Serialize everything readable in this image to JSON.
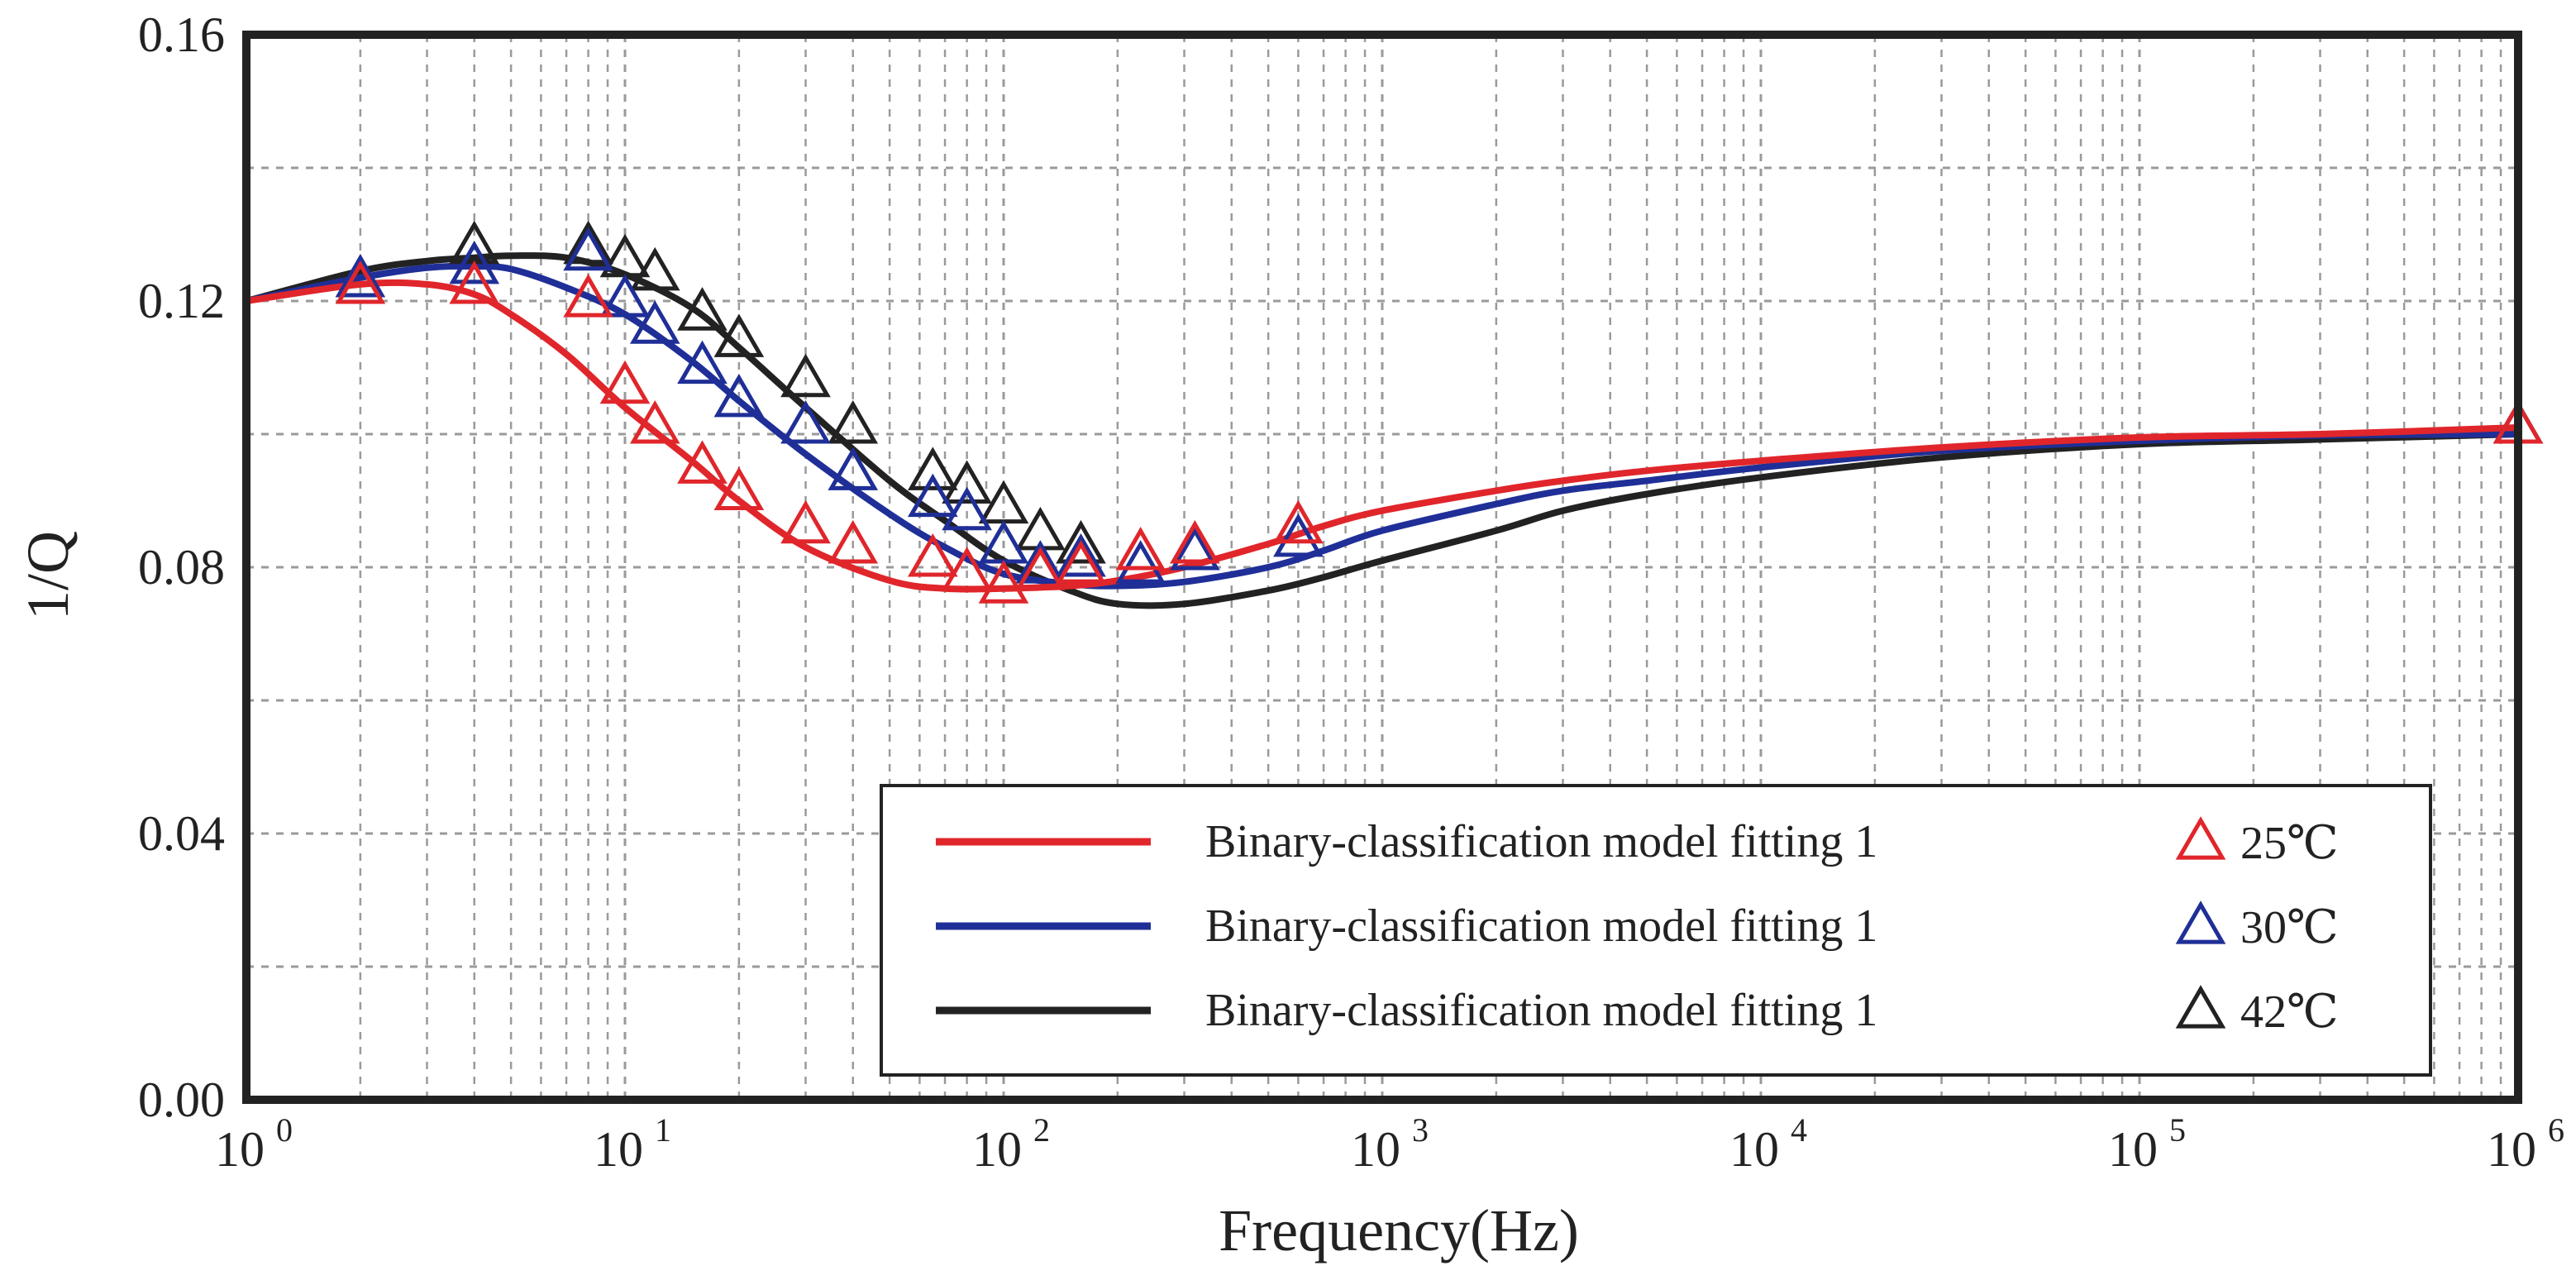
{
  "chart_data": {
    "type": "line",
    "title": "",
    "xlabel": "Frequency(Hz)",
    "ylabel": "1/Q",
    "xscale": "log",
    "xlim": [
      1,
      1000000
    ],
    "ylim": [
      0.0,
      0.16
    ],
    "y_ticks": [
      "0.00",
      "0.04",
      "0.08",
      "0.12",
      "0.16"
    ],
    "x_ticks": [
      {
        "base": "10",
        "exp": "0"
      },
      {
        "base": "10",
        "exp": "1"
      },
      {
        "base": "10",
        "exp": "2"
      },
      {
        "base": "10",
        "exp": "3"
      },
      {
        "base": "10",
        "exp": "4"
      },
      {
        "base": "10",
        "exp": "5"
      },
      {
        "base": "10",
        "exp": "6"
      }
    ],
    "grid": true,
    "legend_position": "bottom-right",
    "series": [
      {
        "name": "Binary-classification model fitting 1",
        "marker_label": "25℃",
        "color": "#e0262b",
        "fit_x": [
          1,
          2,
          3,
          4,
          5,
          7,
          10,
          15,
          20,
          30,
          50,
          70,
          100,
          150,
          200,
          300,
          500,
          700,
          1000,
          2000,
          3000,
          5000,
          10000,
          30000,
          100000,
          300000,
          1000000
        ],
        "fit_y": [
          0.12,
          0.1225,
          0.1225,
          0.121,
          0.118,
          0.112,
          0.104,
          0.096,
          0.09,
          0.083,
          0.078,
          0.0768,
          0.0768,
          0.0772,
          0.078,
          0.08,
          0.0835,
          0.0862,
          0.0885,
          0.0915,
          0.093,
          0.0945,
          0.096,
          0.098,
          0.0995,
          0.1,
          0.101
        ],
        "data_x": [
          2,
          4,
          8,
          10,
          12,
          16,
          20,
          30,
          40,
          65,
          80,
          100,
          125,
          160,
          230,
          320,
          600,
          1000000
        ],
        "data_y": [
          0.122,
          0.122,
          0.12,
          0.107,
          0.101,
          0.095,
          0.091,
          0.086,
          0.083,
          0.081,
          0.079,
          0.077,
          0.079,
          0.08,
          0.082,
          0.083,
          0.086,
          0.101
        ]
      },
      {
        "name": "Binary-classification model fitting 1",
        "marker_label": "30℃",
        "color": "#1f2f97",
        "fit_x": [
          1,
          2,
          3,
          4,
          5,
          7,
          10,
          15,
          20,
          30,
          50,
          70,
          100,
          150,
          200,
          300,
          500,
          700,
          1000,
          2000,
          3000,
          5000,
          10000,
          30000,
          100000,
          300000,
          1000000
        ],
        "fit_y": [
          0.12,
          0.1235,
          0.125,
          0.1252,
          0.1248,
          0.122,
          0.118,
          0.111,
          0.105,
          0.097,
          0.088,
          0.083,
          0.079,
          0.0775,
          0.0772,
          0.0778,
          0.08,
          0.0825,
          0.0855,
          0.0895,
          0.0915,
          0.093,
          0.095,
          0.0975,
          0.099,
          0.0998,
          0.1
        ],
        "data_x": [
          2,
          4,
          8,
          10,
          12,
          16,
          20,
          30,
          40,
          65,
          80,
          100,
          125,
          160,
          230,
          320,
          600,
          1000000
        ],
        "data_y": [
          0.123,
          0.125,
          0.127,
          0.12,
          0.116,
          0.11,
          0.105,
          0.101,
          0.094,
          0.09,
          0.088,
          0.083,
          0.08,
          0.081,
          0.08,
          0.082,
          0.084,
          0.101
        ]
      },
      {
        "name": "Binary-classification model fitting 1",
        "marker_label": "42℃",
        "color": "#222222",
        "fit_x": [
          1,
          2,
          3,
          4,
          5,
          7,
          10,
          15,
          20,
          30,
          50,
          70,
          100,
          150,
          200,
          300,
          500,
          700,
          1000,
          2000,
          3000,
          5000,
          10000,
          30000,
          100000,
          300000,
          1000000
        ],
        "fit_y": [
          0.12,
          0.1245,
          0.126,
          0.1265,
          0.1268,
          0.1265,
          0.124,
          0.119,
          0.113,
          0.104,
          0.093,
          0.087,
          0.081,
          0.0765,
          0.0745,
          0.0745,
          0.0765,
          0.0785,
          0.081,
          0.0855,
          0.0885,
          0.091,
          0.0935,
          0.0965,
          0.0985,
          0.0992,
          0.1
        ],
        "data_x": [
          4,
          8,
          10,
          12,
          16,
          20,
          30,
          40,
          65,
          80,
          100,
          125,
          160,
          1000000
        ],
        "data_y": [
          0.128,
          0.128,
          0.126,
          0.124,
          0.118,
          0.114,
          0.108,
          0.101,
          0.094,
          0.092,
          0.089,
          0.085,
          0.083,
          0.101
        ]
      }
    ]
  }
}
